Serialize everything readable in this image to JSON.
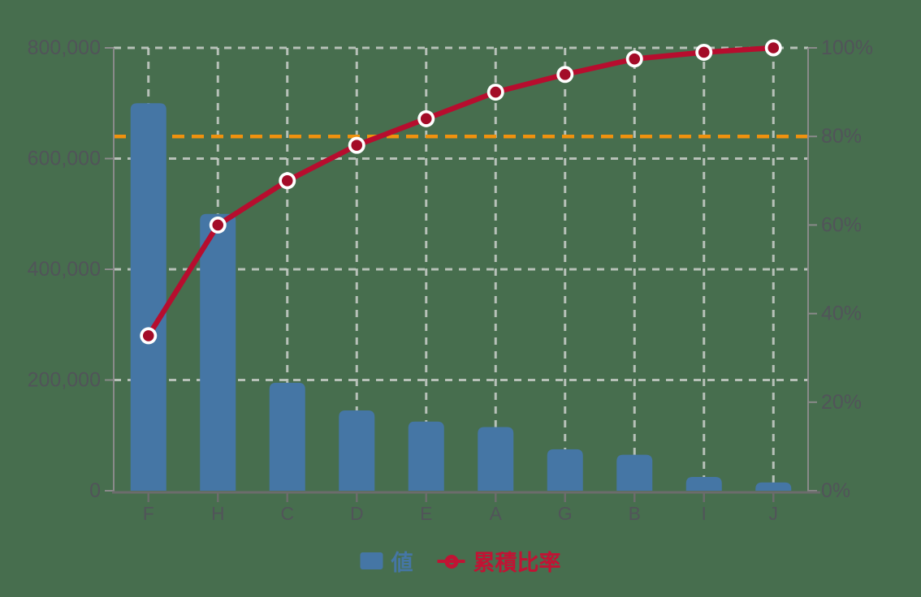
{
  "background_color": "#476e4e",
  "chart_data": {
    "type": "bar",
    "subtype": "pareto-bar-plus-cumulative-line",
    "title": "",
    "categories": [
      "F",
      "H",
      "C",
      "D",
      "E",
      "A",
      "G",
      "B",
      "I",
      "J"
    ],
    "series": [
      {
        "name": "値",
        "type": "bar",
        "axis": "left",
        "values": [
          700000,
          500000,
          195000,
          145000,
          125000,
          115000,
          75000,
          65000,
          25000,
          15000
        ],
        "color": "#4576a5"
      },
      {
        "name": "累積比率",
        "type": "line",
        "axis": "right",
        "values_percent": [
          35,
          60,
          70,
          78,
          84,
          90,
          94,
          97.5,
          99,
          100
        ],
        "color": "#b70d2e",
        "marker_fill": "#a30c28",
        "marker_ring": "#ffffff"
      }
    ],
    "left_axis": {
      "min": 0,
      "max": 800000,
      "ticks": [
        "0",
        "200,000",
        "400,000",
        "600,000",
        "800,000"
      ],
      "tick_values": [
        0,
        200000,
        400000,
        600000,
        800000
      ]
    },
    "right_axis": {
      "min": 0,
      "max": 100,
      "ticks": [
        "0%",
        "20%",
        "40%",
        "60%",
        "80%",
        "100%"
      ],
      "tick_values": [
        0,
        20,
        40,
        60,
        80,
        100
      ]
    },
    "reference_line": {
      "axis": "right",
      "value_percent": 80,
      "color": "#f0920e",
      "style": "dashed"
    },
    "grid": true,
    "gridline_color": "#cbd0cb",
    "axis_line_color": "#8a8a8a",
    "bottom_axis_color": "#6c6c6c",
    "label_color": "#515459",
    "legend_position": "bottom-center",
    "legend": [
      {
        "label": "値",
        "color": "#4576a5",
        "marker": "square"
      },
      {
        "label": "累積比率",
        "color": "#c11334",
        "marker": "line-circle"
      }
    ]
  }
}
